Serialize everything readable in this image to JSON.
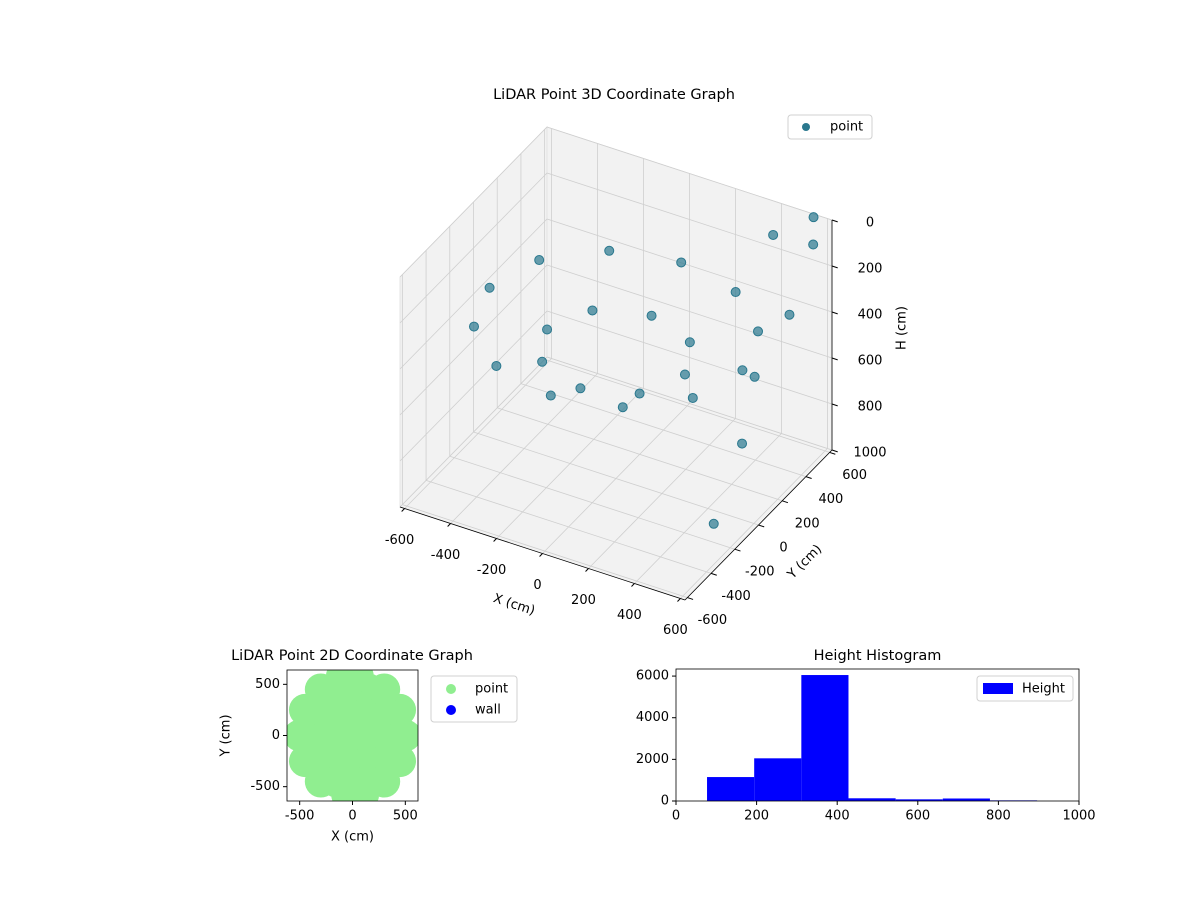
{
  "chart_data": [
    {
      "type": "scatter3d",
      "title": "LiDAR Point 3D Coordinate Graph",
      "x_label": "X (cm)",
      "y_label": "Y (cm)",
      "z_label": "H (cm)",
      "xlim": [
        -620,
        620
      ],
      "ylim": [
        -620,
        620
      ],
      "zlim": [
        0,
        1000
      ],
      "z_inverted": true,
      "xticks": [
        -600,
        -400,
        -200,
        0,
        200,
        400,
        600
      ],
      "yticks": [
        -600,
        -400,
        -200,
        0,
        200,
        400,
        600
      ],
      "zticks": [
        0,
        200,
        400,
        600,
        800,
        1000
      ],
      "grid": true,
      "legend": "upper right",
      "series": [
        {
          "name": "point",
          "color": "#2a788e",
          "x": [
            550,
            476,
            275,
            0,
            -275,
            -476,
            -550,
            -476,
            -275,
            0,
            275,
            476,
            300,
            212,
            0,
            -212,
            -300,
            -212,
            0,
            212,
            600,
            550,
            600,
            600,
            580,
            400,
            500
          ],
          "y": [
            0,
            275,
            476,
            550,
            476,
            275,
            0,
            -275,
            -476,
            -550,
            -476,
            -275,
            0,
            212,
            300,
            212,
            0,
            -212,
            -300,
            -212,
            500,
            600,
            300,
            -100,
            -300,
            550,
            200
          ],
          "z": [
            350,
            350,
            350,
            350,
            350,
            350,
            350,
            350,
            350,
            350,
            350,
            350,
            450,
            450,
            450,
            450,
            450,
            450,
            450,
            450,
            50,
            0,
            250,
            600,
            850,
            100,
            500
          ]
        }
      ]
    },
    {
      "type": "scatter",
      "title": "LiDAR Point 2D Coordinate Graph",
      "x_label": "X (cm)",
      "y_label": "Y (cm)",
      "xlim": [
        -620,
        620
      ],
      "ylim": [
        -640,
        640
      ],
      "xticks": [
        -500,
        0,
        500
      ],
      "yticks": [
        -500,
        0,
        500
      ],
      "legend": "outside right",
      "series": [
        {
          "name": "point",
          "color": "#90ee90",
          "x": [
            -500,
            -400,
            -300,
            -200,
            -100,
            0,
            100,
            200,
            300,
            400,
            500,
            -450,
            -300,
            -150,
            0,
            150,
            300,
            450,
            -450,
            -300,
            -150,
            0,
            150,
            300,
            450,
            -300,
            -150,
            0,
            150,
            300,
            -300,
            -150,
            0,
            150,
            300,
            -100,
            50,
            -50,
            100
          ],
          "y": [
            0,
            0,
            0,
            0,
            0,
            0,
            0,
            0,
            0,
            0,
            0,
            250,
            250,
            250,
            250,
            250,
            250,
            250,
            -250,
            -250,
            -250,
            -250,
            -250,
            -250,
            -250,
            450,
            450,
            450,
            450,
            450,
            -450,
            -450,
            -450,
            -450,
            -450,
            580,
            580,
            -580,
            -580
          ]
        },
        {
          "name": "wall",
          "color": "#0000ff",
          "x": [],
          "y": []
        }
      ]
    },
    {
      "type": "histogram",
      "title": "Height Histogram",
      "bins": [
        77,
        194,
        311,
        428,
        545,
        662,
        779,
        896
      ],
      "values": [
        1150,
        2050,
        6050,
        130,
        80,
        120,
        30
      ],
      "series_name": "Height",
      "color": "#0000ff",
      "xlim": [
        0,
        1000
      ],
      "ylim": [
        0,
        6340
      ],
      "xticks": [
        0,
        200,
        400,
        600,
        800,
        1000
      ],
      "yticks": [
        0,
        2000,
        4000,
        6000
      ],
      "legend": "upper right"
    }
  ]
}
